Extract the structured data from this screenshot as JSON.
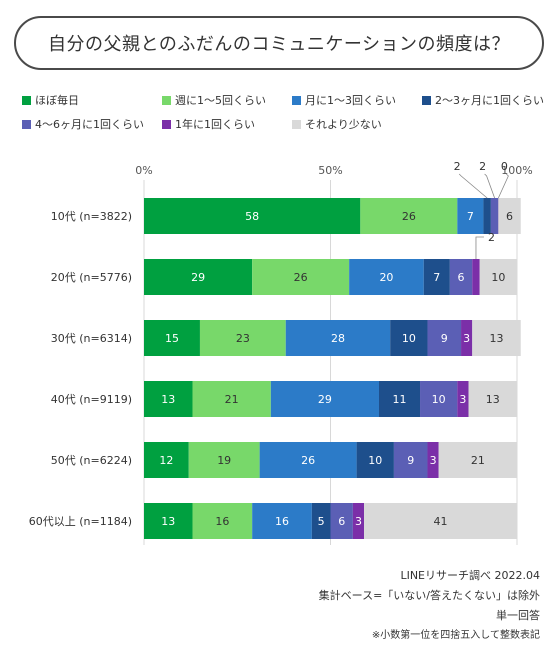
{
  "chart_data": {
    "type": "bar",
    "orientation": "horizontal-stacked-100",
    "title": "自分の父親とのふだんのコミュニケーションの頻度は？",
    "axis_ticks": [
      "0%",
      "50%",
      "100%"
    ],
    "xlim": [
      0,
      100
    ],
    "grid": true,
    "legend_position": "top",
    "categories": [
      "10代 (n=3822)",
      "20代 (n=5776)",
      "30代 (n=6314)",
      "40代 (n=9119)",
      "50代 (n=6224)",
      "60代以上 (n=1184)"
    ],
    "series": [
      {
        "name": "ほぼ毎日",
        "color": "#00a040",
        "label_color": "#ffffff",
        "values": [
          58,
          29,
          15,
          13,
          12,
          13
        ]
      },
      {
        "name": "週に1～5回くらい",
        "color": "#78d86a",
        "label_color": "#333333",
        "values": [
          26,
          26,
          23,
          21,
          19,
          16
        ]
      },
      {
        "name": "月に1～3回くらい",
        "color": "#2c7bc8",
        "label_color": "#ffffff",
        "values": [
          7,
          20,
          28,
          29,
          26,
          16
        ]
      },
      {
        "name": "2～3ヶ月に1回くらい",
        "color": "#1e4f8c",
        "label_color": "#ffffff",
        "values": [
          2,
          7,
          10,
          11,
          10,
          5
        ]
      },
      {
        "name": "4～6ヶ月に1回くらい",
        "color": "#5b5fb5",
        "label_color": "#ffffff",
        "values": [
          2,
          6,
          9,
          10,
          9,
          6
        ]
      },
      {
        "name": "1年に1回くらい",
        "color": "#7b2fa8",
        "label_color": "#ffffff",
        "values": [
          0,
          2,
          3,
          3,
          3,
          3
        ]
      },
      {
        "name": "それより少ない",
        "color": "#d9d9d9",
        "label_color": "#333333",
        "values": [
          6,
          10,
          13,
          13,
          21,
          41
        ]
      }
    ]
  },
  "footer": {
    "source": "LINEリサーチ調べ 2022.04",
    "base": "集計ベース=「いない/答えたくない」は除外",
    "answer_type": "単一回答",
    "note": "※小数第一位を四捨五入して整数表記"
  }
}
